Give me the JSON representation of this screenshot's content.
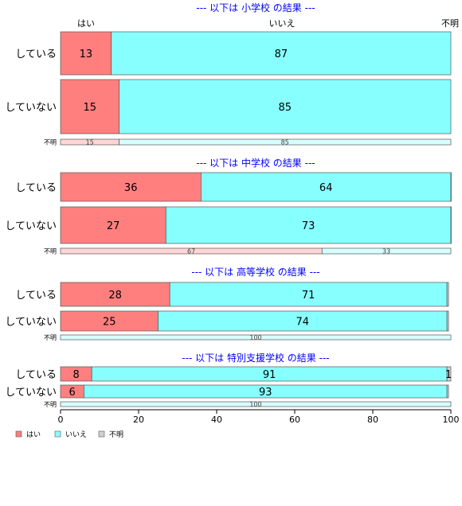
{
  "chart_data": {
    "type": "bar",
    "orientation": "horizontal-stacked-100",
    "xlim": [
      0,
      100
    ],
    "x_ticks": [
      0,
      20,
      40,
      60,
      80,
      100
    ],
    "column_labels": [
      "はい",
      "いいえ",
      "不明"
    ],
    "legend": {
      "placement": "bottom-left",
      "entries": [
        {
          "label": "はい",
          "color": "#ff7f7f"
        },
        {
          "label": "いいえ",
          "color": "#88ffff"
        },
        {
          "label": "不明",
          "color": "#d0d0d0"
        }
      ]
    },
    "panels": [
      {
        "title": "--- 以下は 小学校 の結果 ---",
        "rows": [
          {
            "label": "している",
            "values": [
              13,
              87,
              0
            ],
            "labels": [
              "13",
              "87",
              ""
            ],
            "size": "large"
          },
          {
            "label": "していない",
            "values": [
              15,
              85,
              0
            ],
            "labels": [
              "15",
              "85",
              ""
            ],
            "size": "large"
          },
          {
            "label": "不明",
            "values": [
              15,
              85,
              0
            ],
            "labels": [
              "15",
              "85",
              ""
            ],
            "size": "small"
          }
        ]
      },
      {
        "title": "--- 以下は 中学校 の結果 ---",
        "rows": [
          {
            "label": "している",
            "values": [
              36,
              64,
              0.4
            ],
            "labels": [
              "36",
              "64",
              ""
            ],
            "size": "large"
          },
          {
            "label": "していない",
            "values": [
              27,
              73,
              0.4
            ],
            "labels": [
              "27",
              "73",
              ""
            ],
            "size": "large"
          },
          {
            "label": "不明",
            "values": [
              67,
              33,
              0
            ],
            "labels": [
              "67",
              "33",
              ""
            ],
            "size": "small"
          }
        ]
      },
      {
        "title": "--- 以下は 高等学校 の結果 ---",
        "rows": [
          {
            "label": "している",
            "values": [
              28,
              71,
              0.4
            ],
            "labels": [
              "28",
              "71",
              ""
            ],
            "size": "large"
          },
          {
            "label": "していない",
            "values": [
              25,
              74,
              0.4
            ],
            "labels": [
              "25",
              "74",
              ""
            ],
            "size": "large"
          },
          {
            "label": "不明",
            "values": [
              0,
              100,
              0
            ],
            "labels": [
              "",
              "100",
              ""
            ],
            "size": "small"
          }
        ]
      },
      {
        "title": "--- 以下は 特別支援学校 の結果 ---",
        "rows": [
          {
            "label": "している",
            "values": [
              8,
              91,
              1
            ],
            "labels": [
              "8",
              "91",
              "1"
            ],
            "size": "large"
          },
          {
            "label": "していない",
            "values": [
              6,
              93,
              0.4
            ],
            "labels": [
              "6",
              "93",
              ""
            ],
            "size": "large"
          },
          {
            "label": "不明",
            "values": [
              0,
              100,
              0
            ],
            "labels": [
              "",
              "100",
              ""
            ],
            "size": "small"
          }
        ]
      }
    ]
  }
}
